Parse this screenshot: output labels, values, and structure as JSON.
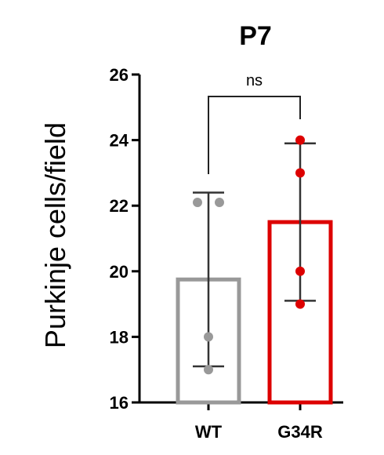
{
  "chart_data": {
    "type": "bar",
    "title": "P7",
    "xlabel": "",
    "ylabel": "Purkinje cells/field",
    "categories": [
      "WT",
      "G34R"
    ],
    "ylim": [
      16,
      26
    ],
    "yticks": [
      16,
      18,
      20,
      22,
      24,
      26
    ],
    "yticks_labels": [
      "16",
      "18",
      "20",
      "22",
      "24",
      "26"
    ],
    "grid": false,
    "series": [
      {
        "values": [
          19.75,
          21.5
        ],
        "error_low": [
          17.1,
          19.1
        ],
        "error_high": [
          22.4,
          23.9
        ],
        "colors": [
          "#999999",
          "#dd0000"
        ],
        "points": [
          [
            22.1,
            22.1,
            18.0,
            17.0
          ],
          [
            24.0,
            23.0,
            20.0,
            19.0
          ]
        ]
      }
    ],
    "annotations": [
      {
        "text": "ns",
        "from": "WT",
        "to": "G34R"
      }
    ]
  }
}
